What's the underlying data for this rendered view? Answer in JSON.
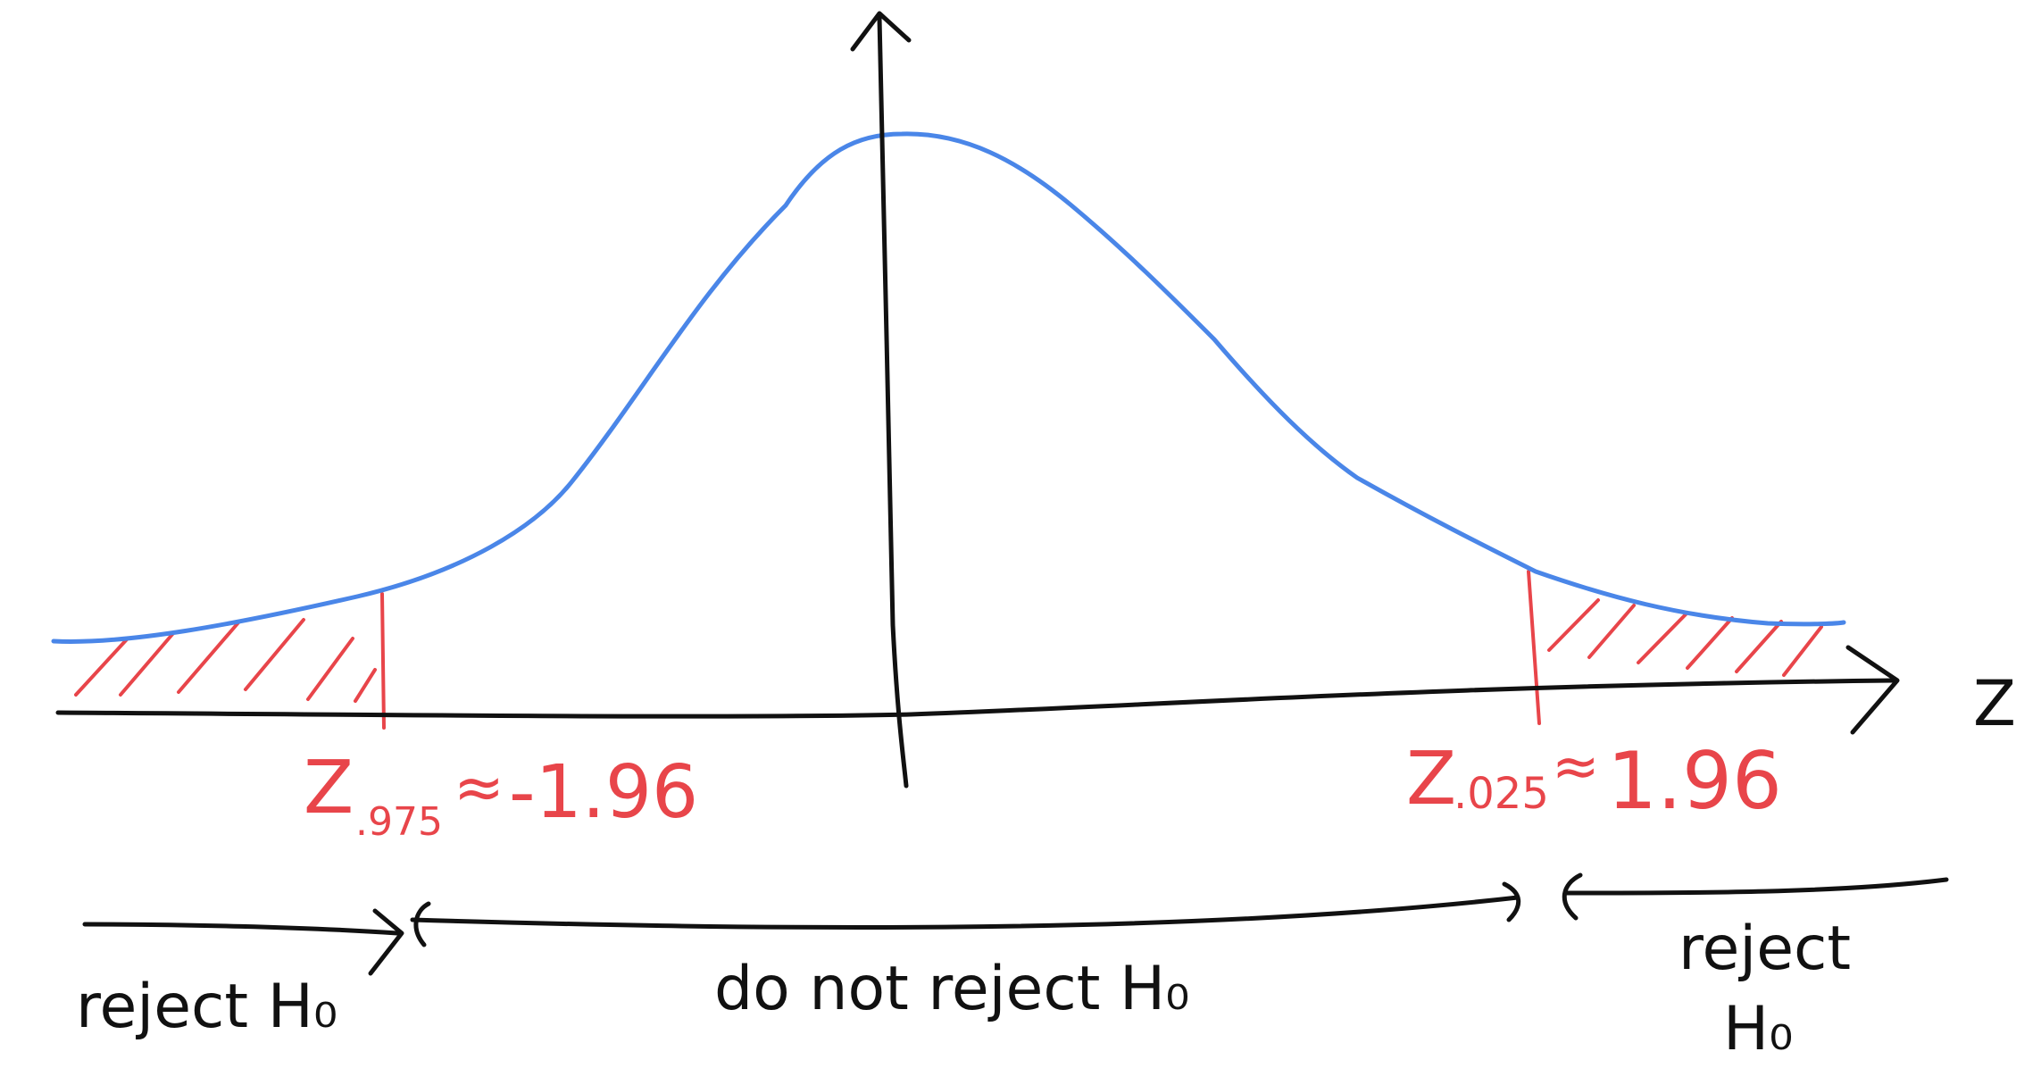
{
  "colors": {
    "curve": "#4a86e8",
    "rejection": "#e8454a",
    "ink": "#111111",
    "background": "#ffffff"
  },
  "axis": {
    "x_label": "Z"
  },
  "critical_values": {
    "left": {
      "symbol": "Z",
      "subscript": ".975",
      "relation": "≈",
      "value": "-1.96"
    },
    "right": {
      "symbol": "Z",
      "subscript": ".025",
      "relation": "≈",
      "value": "1.96"
    }
  },
  "regions": {
    "left_reject": {
      "line1": "reject H₀",
      "line2": ""
    },
    "middle": {
      "line1": "do not reject H₀"
    },
    "right_reject": {
      "line1": "reject",
      "line2": "H₀"
    }
  }
}
